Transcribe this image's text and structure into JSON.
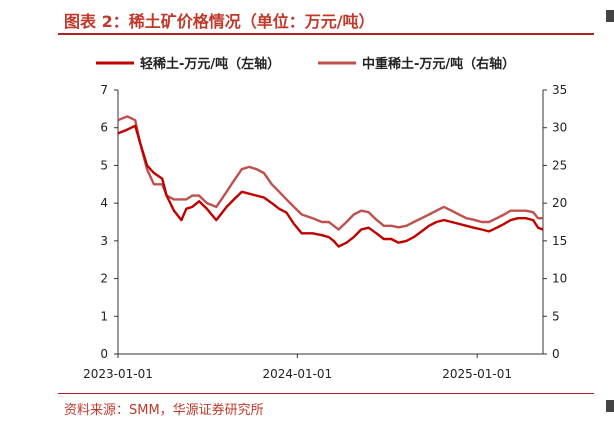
{
  "figure": {
    "title": "图表 2：稀土矿价格情况（单位：万元/吨）",
    "source": "资料来源：SMM，华源证券研究所"
  },
  "chart_data": {
    "type": "line",
    "xlabel": "",
    "ylabel_left": "",
    "ylabel_right": "",
    "legend_position": "top",
    "grid": false,
    "x_ticks": [
      "2023-01-01",
      "2024-01-01",
      "2025-01-01"
    ],
    "x_range": [
      "2023-01-01",
      "2025-05-15"
    ],
    "y_left": {
      "range": [
        0,
        7
      ],
      "ticks": [
        0,
        1,
        2,
        3,
        4,
        5,
        6,
        7
      ]
    },
    "y_right": {
      "range": [
        0,
        35
      ],
      "ticks": [
        0,
        5,
        10,
        15,
        20,
        25,
        30,
        35
      ]
    },
    "series": [
      {
        "name": "轻稀土-万元/吨（左轴）",
        "axis": "left",
        "color": "#c00000",
        "x": [
          "2023-01-01",
          "2023-01-20",
          "2023-02-05",
          "2023-02-15",
          "2023-03-01",
          "2023-03-15",
          "2023-04-01",
          "2023-04-10",
          "2023-04-25",
          "2023-05-10",
          "2023-05-20",
          "2023-06-01",
          "2023-06-15",
          "2023-07-01",
          "2023-07-20",
          "2023-08-10",
          "2023-08-25",
          "2023-09-10",
          "2023-09-25",
          "2023-10-10",
          "2023-10-25",
          "2023-11-10",
          "2023-11-25",
          "2023-12-10",
          "2023-12-25",
          "2024-01-10",
          "2024-02-01",
          "2024-02-20",
          "2024-03-05",
          "2024-03-15",
          "2024-03-25",
          "2024-04-10",
          "2024-04-25",
          "2024-05-10",
          "2024-05-25",
          "2024-06-10",
          "2024-06-25",
          "2024-07-10",
          "2024-07-25",
          "2024-08-10",
          "2024-08-25",
          "2024-09-10",
          "2024-09-25",
          "2024-10-10",
          "2024-10-25",
          "2024-11-10",
          "2024-11-25",
          "2024-12-10",
          "2024-12-25",
          "2025-01-10",
          "2025-01-25",
          "2025-02-10",
          "2025-02-25",
          "2025-03-10",
          "2025-03-25",
          "2025-04-10",
          "2025-04-25",
          "2025-05-05",
          "2025-05-15"
        ],
        "values": [
          5.85,
          5.95,
          6.05,
          5.6,
          5.0,
          4.8,
          4.65,
          4.2,
          3.8,
          3.55,
          3.85,
          3.9,
          4.05,
          3.85,
          3.55,
          3.9,
          4.1,
          4.3,
          4.25,
          4.2,
          4.15,
          4.0,
          3.85,
          3.75,
          3.45,
          3.2,
          3.2,
          3.15,
          3.1,
          3.0,
          2.85,
          2.95,
          3.1,
          3.3,
          3.35,
          3.2,
          3.05,
          3.05,
          2.95,
          3.0,
          3.1,
          3.25,
          3.4,
          3.5,
          3.55,
          3.5,
          3.45,
          3.4,
          3.35,
          3.3,
          3.25,
          3.35,
          3.45,
          3.55,
          3.6,
          3.6,
          3.55,
          3.35,
          3.3
        ]
      },
      {
        "name": "中重稀土-万元/吨（右轴）",
        "axis": "right",
        "color": "#c0504d",
        "x": [
          "2023-01-01",
          "2023-01-20",
          "2023-02-05",
          "2023-02-15",
          "2023-03-01",
          "2023-03-15",
          "2023-04-01",
          "2023-04-10",
          "2023-04-25",
          "2023-05-10",
          "2023-05-20",
          "2023-06-01",
          "2023-06-15",
          "2023-07-01",
          "2023-07-20",
          "2023-08-10",
          "2023-08-25",
          "2023-09-10",
          "2023-09-25",
          "2023-10-10",
          "2023-10-25",
          "2023-11-10",
          "2023-11-25",
          "2023-12-10",
          "2023-12-25",
          "2024-01-10",
          "2024-02-01",
          "2024-02-20",
          "2024-03-05",
          "2024-03-15",
          "2024-03-25",
          "2024-04-10",
          "2024-04-25",
          "2024-05-10",
          "2024-05-25",
          "2024-06-10",
          "2024-06-25",
          "2024-07-10",
          "2024-07-25",
          "2024-08-10",
          "2024-08-25",
          "2024-09-10",
          "2024-09-25",
          "2024-10-10",
          "2024-10-25",
          "2024-11-10",
          "2024-11-25",
          "2024-12-10",
          "2024-12-25",
          "2025-01-10",
          "2025-01-25",
          "2025-02-10",
          "2025-02-25",
          "2025-03-10",
          "2025-03-25",
          "2025-04-10",
          "2025-04-25",
          "2025-05-05",
          "2025-05-15"
        ],
        "values": [
          31.0,
          31.5,
          31.0,
          28.0,
          24.5,
          22.5,
          22.5,
          21.0,
          20.5,
          20.5,
          20.5,
          21.0,
          21.0,
          20.0,
          19.5,
          21.5,
          23.0,
          24.5,
          24.8,
          24.5,
          24.0,
          22.5,
          21.5,
          20.5,
          19.5,
          18.5,
          18.0,
          17.5,
          17.5,
          17.0,
          16.5,
          17.5,
          18.5,
          19.0,
          18.8,
          17.8,
          17.0,
          17.0,
          16.8,
          17.0,
          17.5,
          18.0,
          18.5,
          19.0,
          19.5,
          19.0,
          18.5,
          18.0,
          17.8,
          17.5,
          17.5,
          18.0,
          18.5,
          19.0,
          19.0,
          19.0,
          18.8,
          18.0,
          18.0
        ]
      }
    ]
  }
}
